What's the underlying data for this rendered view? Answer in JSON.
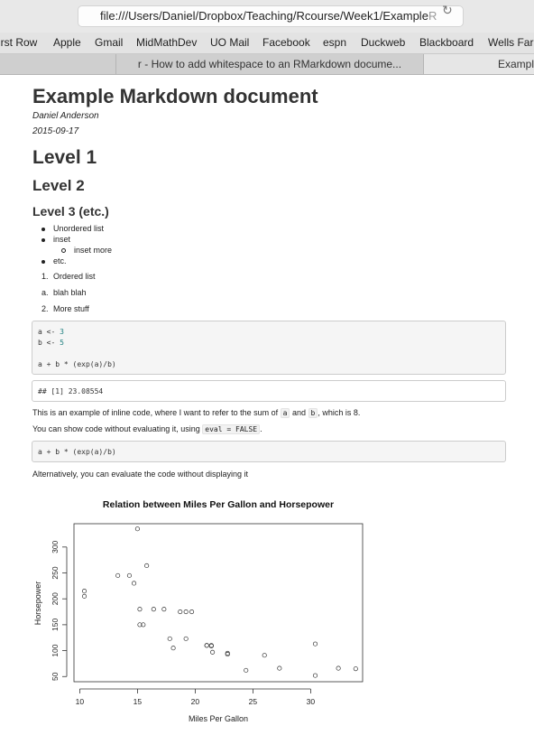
{
  "browser": {
    "url": "file:///Users/Daniel/Dropbox/Teaching/Rcourse/Week1/Example",
    "url_fade": "R",
    "bookmarks": [
      "irst Row",
      "Apple",
      "Gmail",
      "MidMathDev",
      "UO Mail",
      "Facebook",
      "espn",
      "Duckweb",
      "Blackboard",
      "Wells Farg"
    ],
    "tabs": [
      "r - How to add whitespace to an RMarkdown docume...",
      "Exampl"
    ]
  },
  "doc": {
    "title": "Example Markdown document",
    "author": "Daniel Anderson",
    "date": "2015-09-17",
    "level1": "Level 1",
    "level2": "Level 2",
    "level3": "Level 3 (etc.)",
    "ul": [
      "Unordered list",
      "inset",
      "inset more",
      "etc."
    ],
    "ol": [
      {
        "marker": "1.",
        "text": "Ordered list"
      },
      {
        "marker": "a.",
        "text": "blah blah"
      },
      {
        "marker": "2.",
        "text": "More stuff"
      }
    ],
    "code1": {
      "line1_pre": "a <- ",
      "line1_num": "3",
      "line2_pre": "b <- ",
      "line2_num": "5",
      "line3": "a + b * (exp(a)/b)"
    },
    "output1": "## [1] 23.08554",
    "para1": {
      "pre": "This is an example of inline code, where I want to refer to the sum of ",
      "code_a": "a",
      "mid": " and ",
      "code_b": "b",
      "post": ", which is 8."
    },
    "para2": {
      "pre": "You can show code without evaluating it, using ",
      "code": "eval = FALSE",
      "post": "."
    },
    "code2": "a + b * (exp(a)/b)",
    "para3": "Alternatively, you can evaluate the code without displaying it"
  },
  "chart_data": {
    "type": "scatter",
    "title": "Relation between Miles Per Gallon and Horsepower",
    "xlabel": "Miles Per Gallon",
    "ylabel": "Horsepower",
    "xlim": [
      9.5,
      34.5
    ],
    "ylim": [
      40,
      345
    ],
    "xticks": [
      10,
      15,
      20,
      25,
      30
    ],
    "yticks": [
      50,
      100,
      150,
      200,
      250,
      300
    ],
    "x": [
      21.0,
      21.0,
      22.8,
      21.4,
      18.7,
      18.1,
      14.3,
      24.4,
      22.8,
      19.2,
      17.8,
      16.4,
      17.3,
      15.2,
      10.4,
      10.4,
      14.7,
      32.4,
      30.4,
      33.9,
      21.5,
      15.5,
      15.2,
      13.3,
      19.2,
      27.3,
      26.0,
      30.4,
      15.8,
      19.7,
      15.0,
      21.4
    ],
    "y": [
      110,
      110,
      93,
      110,
      175,
      105,
      245,
      62,
      95,
      123,
      123,
      180,
      180,
      180,
      205,
      215,
      230,
      66,
      52,
      65,
      97,
      150,
      150,
      245,
      175,
      66,
      91,
      113,
      264,
      175,
      335,
      109
    ]
  }
}
